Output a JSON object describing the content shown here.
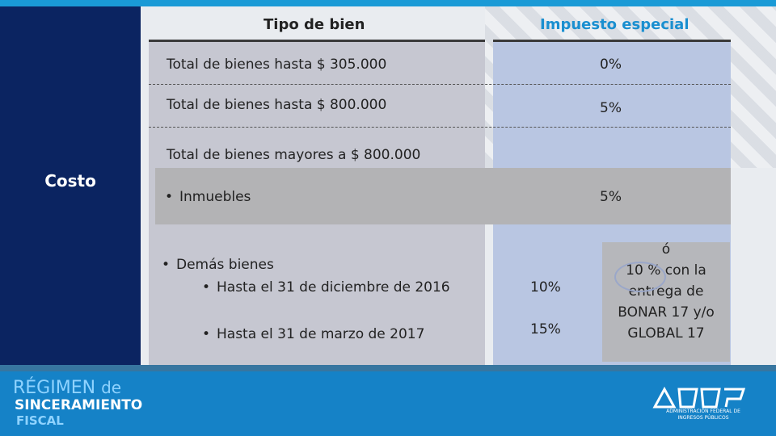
{
  "side_label": "Costo",
  "headers": {
    "tipo": "Tipo de bien",
    "impuesto": "Impuesto especial"
  },
  "rows": [
    {
      "label": "Total de bienes hasta $ 305.000",
      "rate": "0%"
    },
    {
      "label": "Total de bienes hasta $ 800.000",
      "rate": "5%"
    },
    {
      "label": "Total de bienes mayores a $ 800.000"
    }
  ],
  "inmuebles": {
    "label": "Inmuebles",
    "rate": "5%"
  },
  "demas": {
    "label": "Demás bienes",
    "items": [
      {
        "label": "Hasta el 31 de diciembre de 2016",
        "rate": "10%"
      },
      {
        "label": "Hasta el 31 de marzo de 2017",
        "rate": "15%"
      }
    ],
    "note_lines": [
      "ó",
      "10 % con la",
      "entrega de",
      "BONAR 17 y/o",
      "GLOBAL 17"
    ]
  },
  "footer": {
    "line1": "RÉGIMEN",
    "line1_suffix": "de",
    "line2": "SINCERAMIENTO",
    "line3": "FISCAL",
    "logo_caption_1": "ADMINISTRACIÓN FEDERAL DE",
    "logo_caption_2": "INGRESOS PÚBLICOS"
  },
  "colors": {
    "side": "#0b2461",
    "accent": "#1a8fd0",
    "footer": "#1582c7"
  }
}
